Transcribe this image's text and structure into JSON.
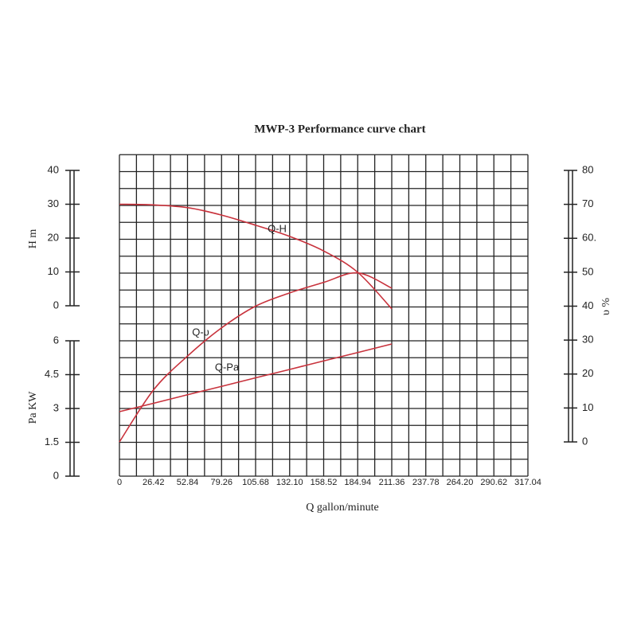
{
  "chart_data": {
    "type": "line",
    "title": "MWP-3 Performance curve chart",
    "xlabel": "Q gallon/minute",
    "ylabel": "H m",
    "y3label": "Pa KW",
    "y2label": "υ %",
    "x": [
      0,
      26.42,
      52.84,
      79.26,
      105.68,
      132.1,
      158.52,
      184.94,
      211.36
    ],
    "xlim": [
      0,
      317.04
    ],
    "xticks": [
      0,
      26.42,
      52.84,
      79.26,
      105.68,
      {
        "value": 132.1,
        "label": "132.10"
      },
      158.52,
      184.94,
      211.36,
      237.78,
      {
        "value": 264.2,
        "label": "264.20"
      },
      290.62,
      317.04
    ],
    "ylim": [
      0,
      40
    ],
    "yticks": [
      0,
      10,
      20,
      30,
      40
    ],
    "y3lim": [
      0,
      6
    ],
    "y3ticks": [
      0,
      1.5,
      3,
      4.5,
      6
    ],
    "y2lim": [
      0,
      80
    ],
    "y2ticks": [
      0,
      10,
      20,
      30,
      40,
      50,
      {
        "value": 60,
        "label": "60."
      },
      70,
      80
    ],
    "grid": true,
    "series": [
      {
        "name": "Q-H",
        "color": "#c8323c",
        "values": [
          30,
          29.8,
          29,
          26.8,
          23.8,
          20.5,
          16.2,
          9.9,
          -0.9
        ]
      },
      {
        "name": "Q-υ",
        "color": "#c8323c",
        "axis": "y2",
        "values": [
          0,
          15.3,
          25.3,
          33.6,
          40,
          43.9,
          47,
          49.8,
          45.3
        ]
      },
      {
        "name": "Q-Pa",
        "color": "#c8323c",
        "axis": "y3",
        "values": [
          2.86,
          3.23,
          3.61,
          3.98,
          4.36,
          4.73,
          5.11,
          5.48,
          5.86
        ]
      }
    ]
  }
}
